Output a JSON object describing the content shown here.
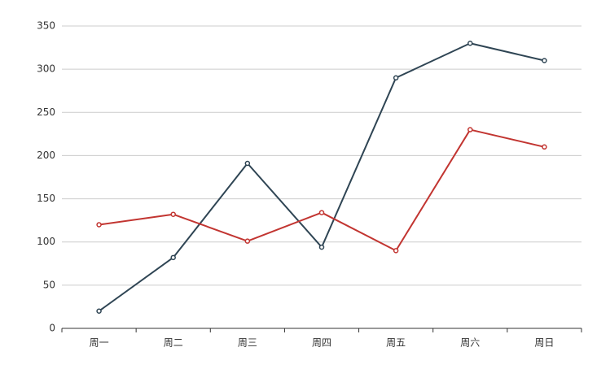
{
  "chart_data": {
    "type": "line",
    "categories": [
      "周一",
      "周二",
      "周三",
      "周四",
      "周五",
      "周六",
      "周日"
    ],
    "series": [
      {
        "color": "#2f4554",
        "values": [
          20,
          82,
          191,
          94,
          290,
          330,
          310
        ]
      },
      {
        "color": "#c23531",
        "values": [
          120,
          132,
          101,
          134,
          90,
          230,
          210
        ]
      }
    ],
    "ylim": [
      0,
      350
    ],
    "yticks": [
      0,
      50,
      100,
      150,
      200,
      250,
      300,
      350
    ],
    "grid": true
  }
}
